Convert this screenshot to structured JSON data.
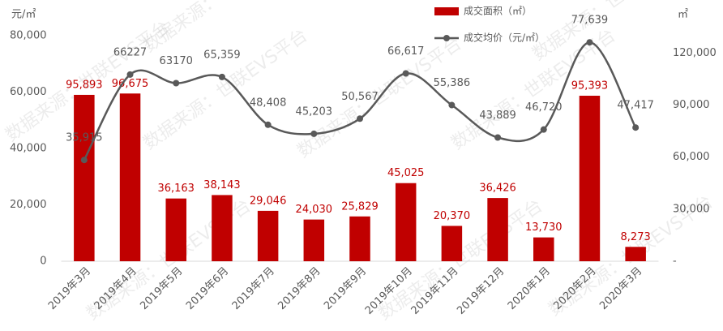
{
  "chart_data": {
    "type": "bar-line",
    "y_unit": "元/㎡",
    "y2_unit": "㎡",
    "watermark": "数据来源：世联EVS平台",
    "categories": [
      "2019年3月",
      "2019年4月",
      "2019年5月",
      "2019年6月",
      "2019年7月",
      "2019年8月",
      "2019年9月",
      "2019年10月",
      "2019年11月",
      "2019年12月",
      "2020年1月",
      "2020年2月",
      "2020年3月"
    ],
    "series": [
      {
        "name": "成交面积（㎡）",
        "type": "bar",
        "axis": "y2",
        "color": "#c00000",
        "values": [
          95893,
          96675,
          36163,
          38143,
          29046,
          24030,
          25829,
          45025,
          20370,
          36426,
          13730,
          95393,
          8273
        ],
        "value_labels": [
          "95,893",
          "96,675",
          "36,163",
          "38,143",
          "29,046",
          "24,030",
          "25,829",
          "45,025",
          "20,370",
          "36,426",
          "13,730",
          "95,393",
          "8,273"
        ]
      },
      {
        "name": "成交均价（元/㎡）",
        "type": "line",
        "axis": "y",
        "color": "#595959",
        "values": [
          35915,
          66227,
          63170,
          65359,
          48408,
          45203,
          50567,
          66617,
          55386,
          43889,
          46720,
          77639,
          47417
        ],
        "value_labels": [
          "35,915",
          "66227",
          "63170",
          "65,359",
          "48,408",
          "45,203",
          "50,567",
          "66,617",
          "55,386",
          "43,889",
          "46,720",
          "77,639",
          "47,417"
        ]
      }
    ],
    "ylim": [
      0,
      80000
    ],
    "yticks": [
      0,
      {
        "value": 20000,
        "label": "20,000"
      },
      {
        "value": 40000,
        "label": "40,000"
      },
      {
        "value": 60000,
        "label": "60,000"
      },
      {
        "value": 80000,
        "label": "80,000"
      }
    ],
    "y2lim": [
      0,
      130000
    ],
    "y2ticks": [
      {
        "value": 0,
        "label": "-"
      },
      {
        "value": 30000,
        "label": "30,000"
      },
      {
        "value": 60000,
        "label": "60,000"
      },
      {
        "value": 90000,
        "label": "90,000"
      },
      {
        "value": 120000,
        "label": "120,000"
      }
    ],
    "legend": "top"
  }
}
